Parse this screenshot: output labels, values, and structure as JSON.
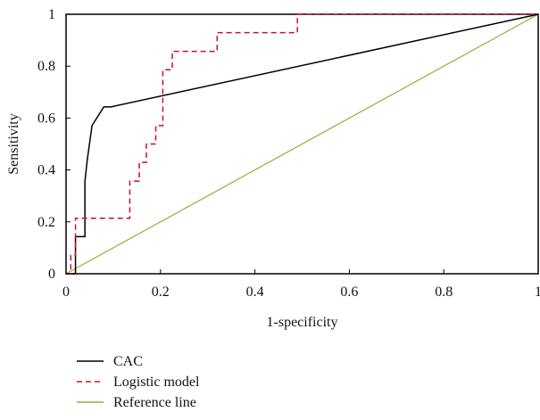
{
  "chart_data": {
    "type": "line",
    "title": "",
    "xlabel": "1-specificity",
    "ylabel": "Sensitivity",
    "xlim": [
      0,
      1
    ],
    "ylim": [
      0,
      1
    ],
    "x_ticks": [
      "0",
      "0.2",
      "0.4",
      "0.6",
      "0.8",
      "1"
    ],
    "y_ticks": [
      "0",
      "0.2",
      "0.4",
      "0.6",
      "0.8",
      "1"
    ],
    "grid": false,
    "legend_position": "bottom-left",
    "series": [
      {
        "name": "CAC",
        "color": "#000000",
        "style": "solid",
        "points": [
          [
            0,
            0
          ],
          [
            0.02,
            0
          ],
          [
            0.02,
            0.143
          ],
          [
            0.04,
            0.143
          ],
          [
            0.04,
            0.357
          ],
          [
            0.045,
            0.44
          ],
          [
            0.055,
            0.571
          ],
          [
            0.08,
            0.643
          ],
          [
            0.095,
            0.643
          ],
          [
            1,
            1
          ]
        ]
      },
      {
        "name": "Logistic model",
        "color": "#c8102e",
        "style": "dashed",
        "points": [
          [
            0,
            0
          ],
          [
            0.01,
            0
          ],
          [
            0.01,
            0.071
          ],
          [
            0.02,
            0.071
          ],
          [
            0.02,
            0.214
          ],
          [
            0.135,
            0.214
          ],
          [
            0.135,
            0.357
          ],
          [
            0.155,
            0.357
          ],
          [
            0.155,
            0.429
          ],
          [
            0.17,
            0.429
          ],
          [
            0.17,
            0.5
          ],
          [
            0.19,
            0.5
          ],
          [
            0.19,
            0.571
          ],
          [
            0.205,
            0.571
          ],
          [
            0.205,
            0.786
          ],
          [
            0.225,
            0.786
          ],
          [
            0.225,
            0.857
          ],
          [
            0.32,
            0.857
          ],
          [
            0.32,
            0.929
          ],
          [
            0.49,
            0.929
          ],
          [
            0.49,
            1
          ],
          [
            1,
            1
          ]
        ]
      },
      {
        "name": "Reference line",
        "color": "#8db33a",
        "style": "solid",
        "points": [
          [
            0,
            0
          ],
          [
            1,
            1
          ]
        ]
      }
    ]
  }
}
